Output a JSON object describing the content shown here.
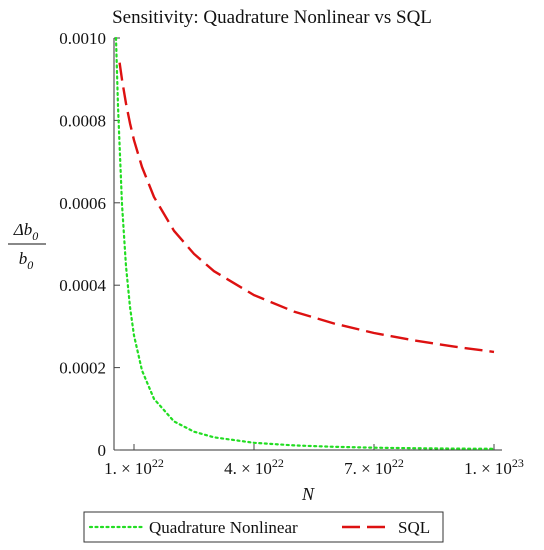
{
  "chart_data": {
    "type": "line",
    "title": "Sensitivity:  Quadrature Nonlinear vs SQL",
    "xlabel": "N",
    "ylabel": {
      "numerator": "Δb0",
      "denominator": "b0"
    },
    "xlim": [
      5e+21,
      1.02e+23
    ],
    "ylim": [
      0,
      0.001
    ],
    "grid": false,
    "legend_position": "bottom",
    "x_ticks": [
      {
        "value": 1e+22,
        "mantissa": "1.",
        "times": "×",
        "base": "10",
        "exp": "22"
      },
      {
        "value": 4e+22,
        "mantissa": "4.",
        "times": "×",
        "base": "10",
        "exp": "22"
      },
      {
        "value": 7e+22,
        "mantissa": "7.",
        "times": "×",
        "base": "10",
        "exp": "22"
      },
      {
        "value": 1e+23,
        "mantissa": "1.",
        "times": "×",
        "base": "10",
        "exp": "23"
      }
    ],
    "y_ticks": [
      {
        "value": 0,
        "label": "0"
      },
      {
        "value": 0.0002,
        "label": "0.0002"
      },
      {
        "value": 0.0004,
        "label": "0.0004"
      },
      {
        "value": 0.0006,
        "label": "0.0006"
      },
      {
        "value": 0.0008,
        "label": "0.0008"
      },
      {
        "value": 0.001,
        "label": "0.0010"
      }
    ],
    "series": [
      {
        "name": "Quadrature Nonlinear",
        "color": "#22dd22",
        "style": "dotted",
        "x": [
          5.5e+21,
          6e+21,
          7e+21,
          8e+21,
          9e+21,
          1e+22,
          1.2e+22,
          1.5e+22,
          2e+22,
          2.5e+22,
          3e+22,
          4e+22,
          5e+22,
          6e+22,
          7e+22,
          8e+22,
          9e+22,
          1e+23
        ],
        "y": [
          0.001,
          0.000834,
          0.000596,
          0.000446,
          0.000347,
          0.000278,
          0.000193,
          0.000124,
          6.95e-05,
          4.45e-05,
          3.09e-05,
          1.74e-05,
          1.11e-05,
          7.7e-06,
          5.7e-06,
          4.3e-06,
          3.4e-06,
          2.8e-06
        ]
      },
      {
        "name": "SQL",
        "color": "#dd1111",
        "style": "dashed",
        "x": [
          6.4e+21,
          7e+21,
          8e+21,
          9e+21,
          1e+22,
          1.2e+22,
          1.5e+22,
          2e+22,
          2.5e+22,
          3e+22,
          4e+22,
          5e+22,
          6e+22,
          7e+22,
          8e+22,
          9e+22,
          1e+23
        ],
        "y": [
          0.00094,
          0.000899,
          0.000841,
          0.000793,
          0.000752,
          0.000687,
          0.000614,
          0.000532,
          0.000476,
          0.000434,
          0.000376,
          0.000336,
          0.000307,
          0.000284,
          0.000266,
          0.000251,
          0.000238
        ]
      }
    ]
  }
}
